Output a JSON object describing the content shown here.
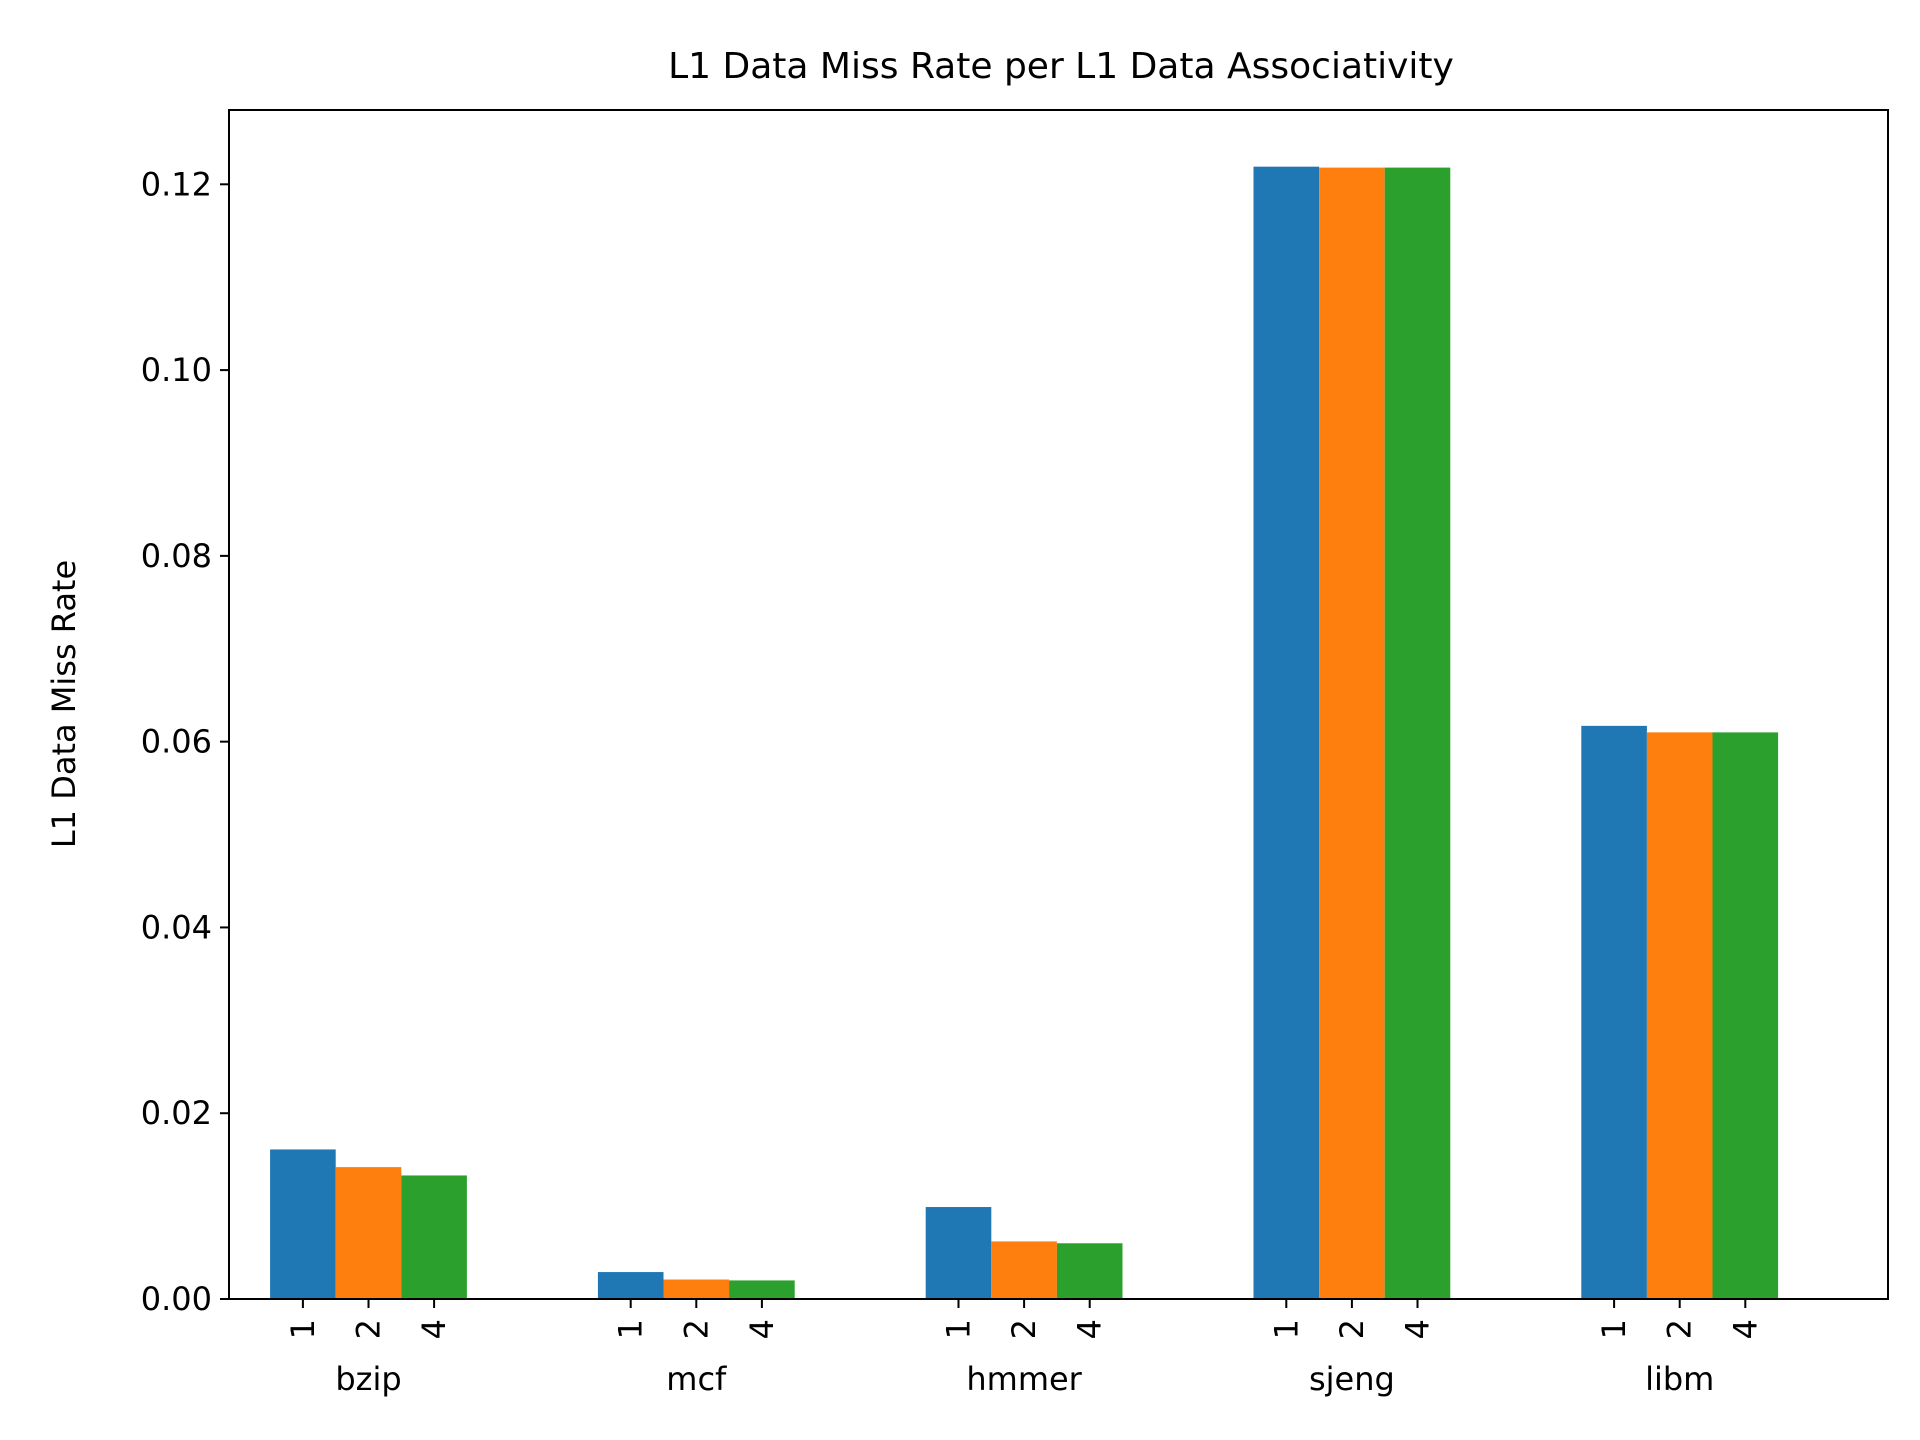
{
  "chart_data": {
    "type": "bar",
    "title": "L1 Data Miss Rate per L1 Data Associativity",
    "ylabel": "L1 Data Miss Rate",
    "xlabel": "",
    "ylim": [
      0,
      0.128
    ],
    "yticks": [
      "0.00",
      "0.02",
      "0.04",
      "0.06",
      "0.08",
      "0.10",
      "0.12"
    ],
    "categories": [
      "bzip",
      "mcf",
      "hmmer",
      "sjeng",
      "libm"
    ],
    "subcategories": [
      "1",
      "2",
      "4"
    ],
    "series": [
      {
        "values": [
          0.0161,
          0.0029,
          0.0099,
          0.1219,
          0.0617
        ],
        "color": "#1f77b4"
      },
      {
        "values": [
          0.0142,
          0.0021,
          0.0062,
          0.1218,
          0.061
        ],
        "color": "#ff7f0e"
      },
      {
        "values": [
          0.0133,
          0.002,
          0.006,
          0.1218,
          0.061
        ],
        "color": "#2ca02c"
      }
    ],
    "grid": false,
    "legend": "none"
  }
}
